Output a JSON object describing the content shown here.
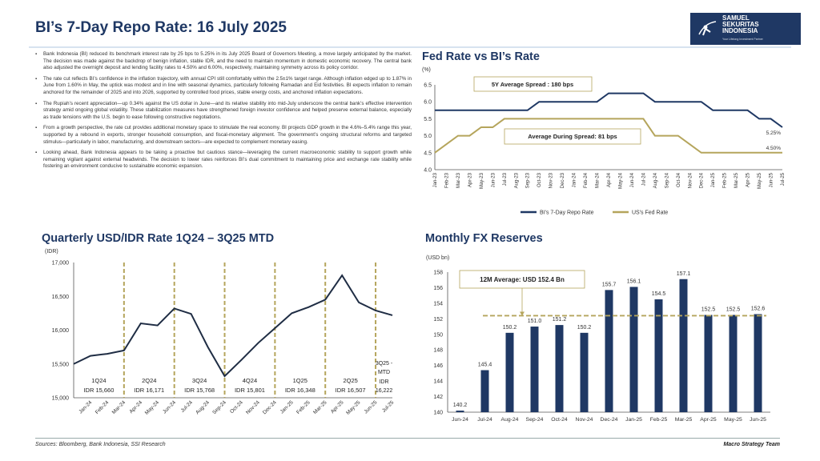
{
  "header": {
    "title": "BI’s 7-Day Repo Rate: 16 July 2025",
    "logo_text": "SAMUEL SEKURITAS INDONESIA",
    "logo_tagline": "Your Lifelong Investment Partner"
  },
  "bullets": [
    "Bank Indonesia (BI) reduced its benchmark interest rate by 25 bps to 5.25% in its July 2025 Board of Governors Meeting, a move largely anticipated by the market. The decision was made against the backdrop of benign inflation, stable IDR, and the need to maintain momentum in domestic economic recovery. The central bank also adjusted the overnight deposit and lending facility rates to 4.50% and 6.00%, respectively, maintaining symmetry across its policy corridor.",
    "The rate cut reflects BI’s confidence in the inflation trajectory, with annual CPI still comfortably within the 2.5±1% target range. Although inflation edged up to 1.87% in June from 1.60% in May, the uptick was modest and in line with seasonal dynamics, particularly following Ramadan and Eid festivities. BI expects inflation to remain anchored for the remainder of 2025 and into 2026, supported by controlled food prices, stable energy costs, and anchored inflation expectations.",
    "The Rupiah’s recent appreciation—up 0.34% against the US dollar in June—and its relative stability into mid-July underscore the central bank’s effective intervention strategy amid ongoing global volatility. These stabilization measures have strengthened foreign investor confidence and helped preserve external balance, especially as trade tensions with the U.S. begin to ease following constructive negotiations.",
    "From a growth perspective, the rate cut provides additional monetary space to stimulate the real economy. BI projects GDP growth in the 4.6%–5.4% range this year, supported by a rebound in exports, stronger household consumption, and fiscal-monetary alignment. The government’s ongoing structural reforms and targeted stimulus—particularly in labor, manufacturing, and downstream sectors—are expected to complement monetary easing.",
    "Looking ahead, Bank Indonesia appears to be taking a proactive but cautious stance—leveraging the current macroeconomic stability to support growth while remaining vigilant against external headwinds. The decision to lower rates reinforces BI’s dual commitment to maintaining price and exchange rate stability while fostering an environment conducive to sustainable economic expansion."
  ],
  "footer": {
    "sources": "Sources: Bloomberg, Bank Indonesia, SSI Research",
    "team": "Macro Strategy Team"
  },
  "colors": {
    "navy": "#1f3864",
    "gold": "#b5a55c"
  },
  "chart_data": [
    {
      "type": "line",
      "title": "Fed Rate vs BI’s Rate",
      "ylabel": "(%)",
      "ylim": [
        4.0,
        6.5
      ],
      "yticks": [
        "4.0",
        "4.5",
        "5.0",
        "5.5",
        "6.0",
        "6.5"
      ],
      "categories": [
        "Jan-23",
        "Feb-23",
        "Mar-23",
        "Apr-23",
        "May-23",
        "Jun-23",
        "Jul-23",
        "Aug-23",
        "Sep-23",
        "Oct-23",
        "Nov-23",
        "Dec-23",
        "Jan-24",
        "Feb-24",
        "Mar-24",
        "Apr-24",
        "May-24",
        "Jun-24",
        "Jul-24",
        "Aug-24",
        "Sep-24",
        "Oct-24",
        "Nov-24",
        "Dec-24",
        "Jan-25",
        "Feb-25",
        "Mar-25",
        "Apr-25",
        "May-25",
        "Jun-25",
        "Jul-25"
      ],
      "series": [
        {
          "name": "BI's 7-Day Repo Rate",
          "color": "#1f3864",
          "values": [
            5.75,
            5.75,
            5.75,
            5.75,
            5.75,
            5.75,
            5.75,
            5.75,
            5.75,
            6.0,
            6.0,
            6.0,
            6.0,
            6.0,
            6.0,
            6.25,
            6.25,
            6.25,
            6.25,
            6.0,
            6.0,
            6.0,
            6.0,
            6.0,
            5.75,
            5.75,
            5.75,
            5.75,
            5.5,
            5.5,
            5.25
          ],
          "end_label": "5.25%"
        },
        {
          "name": "US's Fed Rate",
          "color": "#b5a55c",
          "values": [
            4.5,
            4.75,
            5.0,
            5.0,
            5.25,
            5.25,
            5.5,
            5.5,
            5.5,
            5.5,
            5.5,
            5.5,
            5.5,
            5.5,
            5.5,
            5.5,
            5.5,
            5.5,
            5.5,
            5.0,
            5.0,
            5.0,
            4.75,
            4.5,
            4.5,
            4.5,
            4.5,
            4.5,
            4.5,
            4.5,
            4.5
          ],
          "end_label": "4.50%"
        }
      ],
      "annotations": [
        "5Y Average Spread : 180 bps",
        "Average During Spread: 81 bps"
      ],
      "legend": "bottom",
      "grid": false
    },
    {
      "type": "line",
      "title": "Quarterly USD/IDR Rate 1Q24 – 3Q25 MTD",
      "ylabel": "(IDR)",
      "ylim": [
        15000,
        17000
      ],
      "yticks": [
        "15,000",
        "15,500",
        "16,000",
        "16,500",
        "17,000"
      ],
      "categories": [
        "",
        "Jan-24",
        "Feb-24",
        "Mar-24",
        "Apr-24",
        "May-24",
        "Jun-24",
        "Jul-24",
        "Aug-24",
        "Sep-24",
        "Oct-24",
        "Nov-24",
        "Dec-24",
        "Jan-25",
        "Feb-25",
        "Mar-25",
        "Apr-25",
        "May-25",
        "Jun-25",
        "Jul-25"
      ],
      "values": [
        15500,
        15620,
        15650,
        15700,
        16100,
        16070,
        16320,
        16240,
        15750,
        15320,
        15560,
        15810,
        16030,
        16250,
        16340,
        16450,
        16810,
        16410,
        16290,
        16220
      ],
      "quarter_dividers": [
        "Mar-24",
        "Jun-24",
        "Sep-24",
        "Dec-24",
        "Mar-25",
        "Jun-25"
      ],
      "quarters": [
        {
          "q": "1Q24",
          "avg": "IDR 15,660"
        },
        {
          "q": "2Q24",
          "avg": "IDR 16,171"
        },
        {
          "q": "3Q24",
          "avg": "IDR 15,768"
        },
        {
          "q": "4Q24",
          "avg": "IDR 15,801"
        },
        {
          "q": "1Q25",
          "avg": "IDR 16,348"
        },
        {
          "q": "2Q25",
          "avg": "IDR 16,507"
        },
        {
          "q": "3Q25 - MTD",
          "avg": "IDR 16,222"
        }
      ],
      "grid": false
    },
    {
      "type": "bar",
      "title": "Monthly FX Reserves",
      "ylabel": "(USD bn)",
      "ylim": [
        140,
        158
      ],
      "yticks": [
        "140",
        "142",
        "144",
        "146",
        "148",
        "150",
        "152",
        "154",
        "156",
        "158"
      ],
      "categories": [
        "Jun-24",
        "Jul-24",
        "Aug-24",
        "Sep-24",
        "Oct-24",
        "Nov-24",
        "Dec-24",
        "Jan-25",
        "Feb-25",
        "Mar-25",
        "Apr-25",
        "May-25",
        "Jun-25"
      ],
      "values": [
        140.2,
        145.4,
        150.2,
        151.0,
        151.2,
        150.2,
        155.7,
        156.1,
        154.5,
        157.1,
        152.5,
        152.5,
        152.6
      ],
      "labels": [
        "140.2",
        "145.4",
        "150.2",
        "151.0",
        "151.2",
        "150.2",
        "155.7",
        "156.1",
        "154.5",
        "157.1",
        "152.5",
        "152.5",
        "152.6"
      ],
      "average": 152.4,
      "annotation": "12M Average: USD 152.4 Bn",
      "grid": false
    }
  ]
}
